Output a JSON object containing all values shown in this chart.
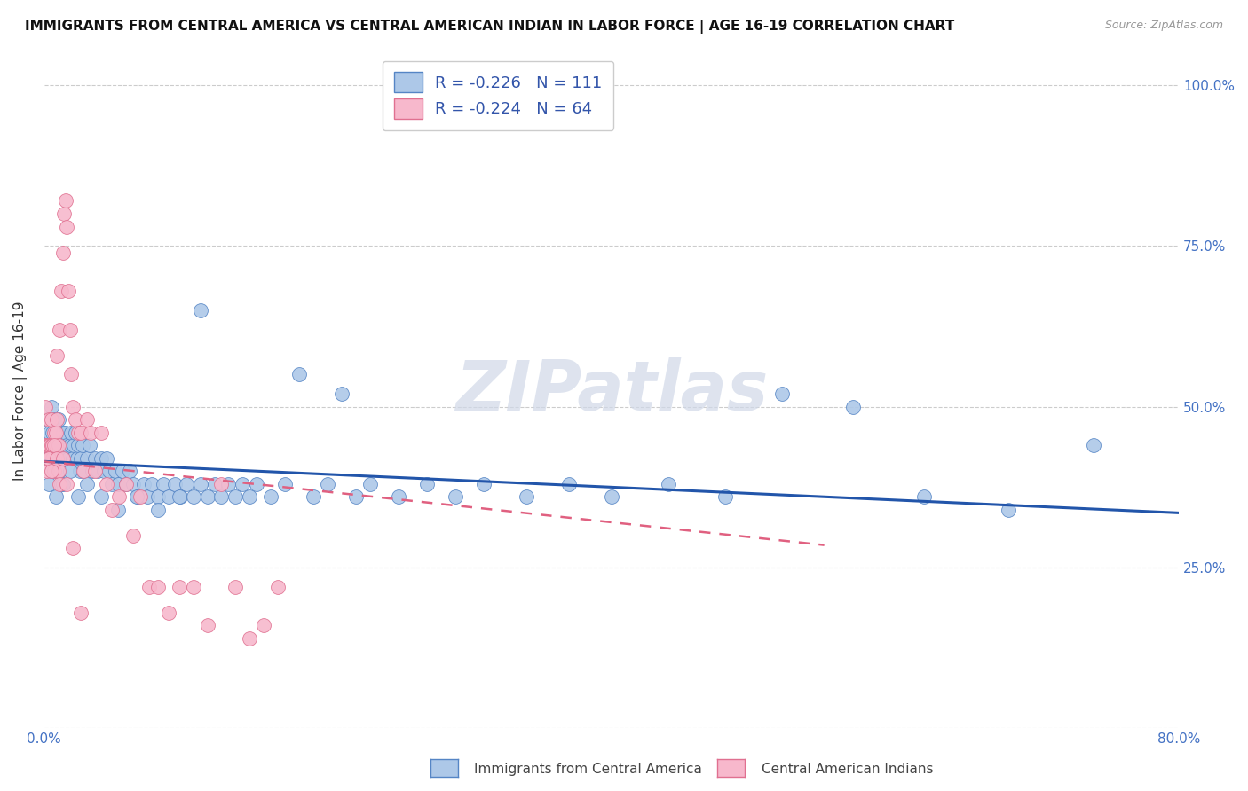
{
  "title": "IMMIGRANTS FROM CENTRAL AMERICA VS CENTRAL AMERICAN INDIAN IN LABOR FORCE | AGE 16-19 CORRELATION CHART",
  "source": "Source: ZipAtlas.com",
  "ylabel": "In Labor Force | Age 16-19",
  "xlim": [
    0.0,
    0.8
  ],
  "ylim": [
    0.0,
    1.05
  ],
  "ytick_positions": [
    0.0,
    0.25,
    0.5,
    0.75,
    1.0
  ],
  "ytick_labels": [
    "",
    "25.0%",
    "50.0%",
    "75.0%",
    "100.0%"
  ],
  "xtick_positions": [
    0.0,
    0.1,
    0.2,
    0.3,
    0.4,
    0.5,
    0.6,
    0.7,
    0.8
  ],
  "xtick_labels": [
    "0.0%",
    "",
    "",
    "",
    "",
    "",
    "",
    "",
    "80.0%"
  ],
  "r_blue": -0.226,
  "n_blue": 111,
  "r_pink": -0.224,
  "n_pink": 64,
  "legend_label_blue": "Immigrants from Central America",
  "legend_label_pink": "Central American Indians",
  "blue_scatter_color": "#adc8e8",
  "pink_scatter_color": "#f7b8cc",
  "blue_edge_color": "#5585c5",
  "pink_edge_color": "#e07090",
  "blue_line_color": "#2255aa",
  "pink_line_color": "#e06080",
  "background_color": "#ffffff",
  "watermark": "ZIPatlas",
  "blue_line_x0": 0.0,
  "blue_line_y0": 0.415,
  "blue_line_x1": 0.8,
  "blue_line_y1": 0.335,
  "pink_line_x0": 0.0,
  "pink_line_y0": 0.415,
  "pink_line_x1": 0.55,
  "pink_line_y1": 0.285,
  "blue_x": [
    0.001,
    0.002,
    0.002,
    0.003,
    0.003,
    0.004,
    0.004,
    0.005,
    0.005,
    0.005,
    0.006,
    0.006,
    0.007,
    0.007,
    0.008,
    0.008,
    0.009,
    0.009,
    0.01,
    0.01,
    0.011,
    0.011,
    0.012,
    0.012,
    0.013,
    0.013,
    0.014,
    0.015,
    0.015,
    0.016,
    0.017,
    0.018,
    0.019,
    0.02,
    0.021,
    0.022,
    0.023,
    0.024,
    0.025,
    0.026,
    0.027,
    0.028,
    0.03,
    0.032,
    0.034,
    0.036,
    0.038,
    0.04,
    0.042,
    0.044,
    0.046,
    0.048,
    0.05,
    0.052,
    0.055,
    0.058,
    0.06,
    0.063,
    0.066,
    0.07,
    0.073,
    0.076,
    0.08,
    0.084,
    0.088,
    0.092,
    0.096,
    0.1,
    0.105,
    0.11,
    0.115,
    0.12,
    0.125,
    0.13,
    0.135,
    0.14,
    0.145,
    0.15,
    0.16,
    0.17,
    0.18,
    0.19,
    0.2,
    0.21,
    0.22,
    0.23,
    0.25,
    0.27,
    0.29,
    0.31,
    0.34,
    0.37,
    0.4,
    0.44,
    0.48,
    0.52,
    0.57,
    0.62,
    0.68,
    0.74,
    0.008,
    0.013,
    0.018,
    0.024,
    0.03,
    0.04,
    0.052,
    0.065,
    0.08,
    0.095,
    0.11
  ],
  "blue_y": [
    0.44,
    0.42,
    0.48,
    0.44,
    0.38,
    0.46,
    0.42,
    0.44,
    0.5,
    0.4,
    0.44,
    0.46,
    0.42,
    0.48,
    0.4,
    0.44,
    0.46,
    0.42,
    0.44,
    0.48,
    0.42,
    0.4,
    0.44,
    0.38,
    0.46,
    0.42,
    0.44,
    0.42,
    0.46,
    0.44,
    0.42,
    0.44,
    0.46,
    0.42,
    0.44,
    0.46,
    0.42,
    0.44,
    0.4,
    0.42,
    0.44,
    0.4,
    0.42,
    0.44,
    0.4,
    0.42,
    0.4,
    0.42,
    0.4,
    0.42,
    0.4,
    0.38,
    0.4,
    0.38,
    0.4,
    0.38,
    0.4,
    0.38,
    0.36,
    0.38,
    0.36,
    0.38,
    0.36,
    0.38,
    0.36,
    0.38,
    0.36,
    0.38,
    0.36,
    0.38,
    0.36,
    0.38,
    0.36,
    0.38,
    0.36,
    0.38,
    0.36,
    0.38,
    0.36,
    0.38,
    0.55,
    0.36,
    0.38,
    0.52,
    0.36,
    0.38,
    0.36,
    0.38,
    0.36,
    0.38,
    0.36,
    0.38,
    0.36,
    0.38,
    0.36,
    0.52,
    0.5,
    0.36,
    0.34,
    0.44,
    0.36,
    0.38,
    0.4,
    0.36,
    0.38,
    0.36,
    0.34,
    0.36,
    0.34,
    0.36,
    0.65
  ],
  "pink_x": [
    0.001,
    0.001,
    0.002,
    0.002,
    0.003,
    0.003,
    0.004,
    0.004,
    0.005,
    0.005,
    0.006,
    0.006,
    0.007,
    0.007,
    0.008,
    0.008,
    0.009,
    0.009,
    0.01,
    0.01,
    0.011,
    0.012,
    0.013,
    0.014,
    0.015,
    0.016,
    0.017,
    0.018,
    0.019,
    0.02,
    0.022,
    0.024,
    0.026,
    0.028,
    0.03,
    0.033,
    0.036,
    0.04,
    0.044,
    0.048,
    0.053,
    0.058,
    0.063,
    0.068,
    0.074,
    0.08,
    0.088,
    0.095,
    0.105,
    0.115,
    0.125,
    0.135,
    0.145,
    0.155,
    0.165,
    0.003,
    0.005,
    0.007,
    0.009,
    0.011,
    0.013,
    0.016,
    0.02,
    0.026
  ],
  "pink_y": [
    0.44,
    0.5,
    0.44,
    0.4,
    0.44,
    0.48,
    0.44,
    0.42,
    0.44,
    0.48,
    0.42,
    0.44,
    0.46,
    0.4,
    0.44,
    0.46,
    0.58,
    0.48,
    0.44,
    0.4,
    0.62,
    0.68,
    0.74,
    0.8,
    0.82,
    0.78,
    0.68,
    0.62,
    0.55,
    0.5,
    0.48,
    0.46,
    0.46,
    0.4,
    0.48,
    0.46,
    0.4,
    0.46,
    0.38,
    0.34,
    0.36,
    0.38,
    0.3,
    0.36,
    0.22,
    0.22,
    0.18,
    0.22,
    0.22,
    0.16,
    0.38,
    0.22,
    0.14,
    0.16,
    0.22,
    0.42,
    0.4,
    0.44,
    0.42,
    0.38,
    0.42,
    0.38,
    0.28,
    0.18
  ]
}
